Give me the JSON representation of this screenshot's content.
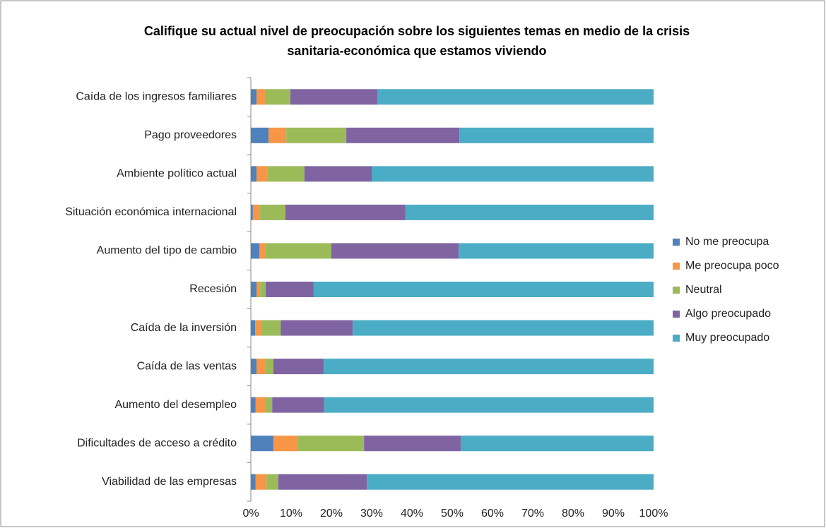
{
  "chart_data": {
    "type": "stacked_barh",
    "title": "Califique su actual nivel de preocupación sobre los siguientes temas en medio de la crisis sanitaria-económica que estamos viviendo",
    "categories": [
      "Caída de los ingresos familiares",
      "Pago proveedores",
      "Ambiente político actual",
      "Situación económica internacional",
      "Aumento del tipo de cambio",
      "Recesión",
      "Caída de la inversión",
      "Caída de las ventas",
      "Aumento del desempleo",
      "Dificultades de acceso a crédito",
      "Viabilidad de las empresas"
    ],
    "series": [
      {
        "name": "No me preocupa",
        "color": "#4f81bd",
        "values": [
          1.4,
          4.4,
          1.4,
          0.5,
          2.1,
          1.4,
          1.1,
          1.4,
          1.2,
          5.6,
          1.2
        ]
      },
      {
        "name": "Me preocupa poco",
        "color": "#f79646",
        "values": [
          2.1,
          4.4,
          2.8,
          1.8,
          1.6,
          0.9,
          1.5,
          2.3,
          2.5,
          6.0,
          2.7
        ]
      },
      {
        "name": "Neutral",
        "color": "#9bbb59",
        "values": [
          6.3,
          14.9,
          9.1,
          6.3,
          16.3,
          1.4,
          4.8,
          1.9,
          1.6,
          16.5,
          2.9
        ]
      },
      {
        "name": "Algo preocupado",
        "color": "#8064a2",
        "values": [
          21.6,
          28.1,
          16.7,
          29.8,
          31.6,
          11.9,
          17.9,
          12.5,
          12.9,
          24.0,
          22.0
        ]
      },
      {
        "name": "Muy preocupado",
        "color": "#4bacc6",
        "values": [
          68.6,
          48.2,
          70.0,
          61.6,
          48.4,
          84.4,
          74.7,
          81.9,
          81.8,
          47.9,
          71.2
        ]
      }
    ],
    "xlim": [
      0,
      100
    ],
    "xticks": [
      {
        "value": 0,
        "label": "0%"
      },
      {
        "value": 10,
        "label": "10%"
      },
      {
        "value": 20,
        "label": "20%"
      },
      {
        "value": 30,
        "label": "30%"
      },
      {
        "value": 40,
        "label": "40%"
      },
      {
        "value": 50,
        "label": "50%"
      },
      {
        "value": 60,
        "label": "60%"
      },
      {
        "value": 70,
        "label": "70%"
      },
      {
        "value": 80,
        "label": "80%"
      },
      {
        "value": 90,
        "label": "90%"
      },
      {
        "value": 100,
        "label": "100%"
      }
    ],
    "legend": "right",
    "grid": false
  }
}
